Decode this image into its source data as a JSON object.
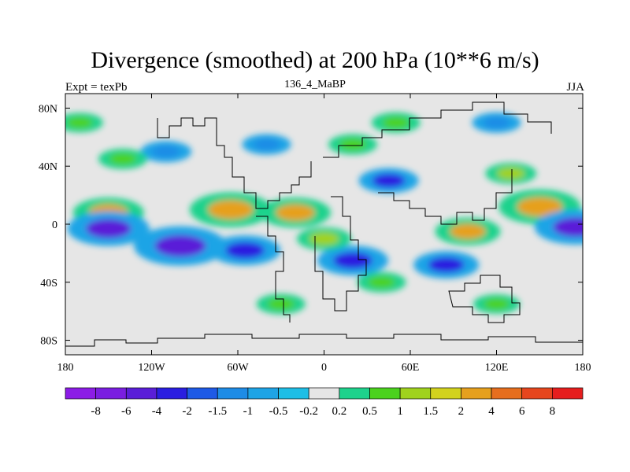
{
  "chart_data": {
    "type": "heatmap",
    "title": "Divergence (smoothed) at 200 hPa (10**6 m/s)",
    "subtitle_left": "Expt = texPb",
    "subtitle_center": "136_4_MaBP",
    "subtitle_right": "JJA",
    "xlim": [
      -180,
      180
    ],
    "ylim": [
      -90,
      90
    ],
    "x_ticks": [
      {
        "value": -180,
        "label": "180"
      },
      {
        "value": -120,
        "label": "120W"
      },
      {
        "value": -60,
        "label": "60W"
      },
      {
        "value": 0,
        "label": "0"
      },
      {
        "value": 60,
        "label": "60E"
      },
      {
        "value": 120,
        "label": "120E"
      },
      {
        "value": 180,
        "label": "180"
      }
    ],
    "y_ticks": [
      {
        "value": 80,
        "label": "80N"
      },
      {
        "value": 40,
        "label": "40N"
      },
      {
        "value": 0,
        "label": "0"
      },
      {
        "value": -40,
        "label": "40S"
      },
      {
        "value": -80,
        "label": "80S"
      }
    ],
    "colorbar": {
      "levels": [
        "-8",
        "-6",
        "-4",
        "-2",
        "-1.5",
        "-1",
        "-0.5",
        "-0.2",
        "0.2",
        "0.5",
        "1",
        "1.5",
        "2",
        "4",
        "6",
        "8"
      ],
      "colors": [
        "#8c1ce6",
        "#7a1ee0",
        "#5a1ed8",
        "#2a1ee0",
        "#1e5ae6",
        "#1e8ce6",
        "#1ea4e6",
        "#1ebee6",
        "#e6e6e6",
        "#1ed28c",
        "#4bd21e",
        "#a0d21e",
        "#d2d21e",
        "#e6a01e",
        "#e66e1e",
        "#e6461e",
        "#e61e1e"
      ]
    },
    "anomalies": [
      {
        "lon": -150,
        "lat": 8,
        "value": 3
      },
      {
        "lon": -65,
        "lat": 10,
        "value": 4
      },
      {
        "lon": -20,
        "lat": 8,
        "value": 3
      },
      {
        "lon": 150,
        "lat": 12,
        "value": 4
      },
      {
        "lon": 100,
        "lat": -5,
        "value": 2.5
      },
      {
        "lon": -150,
        "lat": -3,
        "value": -4
      },
      {
        "lon": -100,
        "lat": -15,
        "value": -5
      },
      {
        "lon": -55,
        "lat": -18,
        "value": -3
      },
      {
        "lon": 20,
        "lat": -25,
        "value": -3
      },
      {
        "lon": 85,
        "lat": -28,
        "value": -2.5
      },
      {
        "lon": 175,
        "lat": -2,
        "value": -4
      },
      {
        "lon": 45,
        "lat": 30,
        "value": -2
      },
      {
        "lon": -110,
        "lat": 50,
        "value": -1.2
      },
      {
        "lon": -40,
        "lat": 55,
        "value": -1
      },
      {
        "lon": 20,
        "lat": 55,
        "value": 1
      },
      {
        "lon": -140,
        "lat": 45,
        "value": 1
      },
      {
        "lon": 50,
        "lat": 70,
        "value": 1
      },
      {
        "lon": 40,
        "lat": -40,
        "value": 1
      },
      {
        "lon": -30,
        "lat": -55,
        "value": 1
      },
      {
        "lon": 120,
        "lat": 70,
        "value": -1
      },
      {
        "lon": 120,
        "lat": -55,
        "value": 0.8
      },
      {
        "lon": 0,
        "lat": -10,
        "value": 1.5
      },
      {
        "lon": 130,
        "lat": 35,
        "value": 1.2
      },
      {
        "lon": -170,
        "lat": 70,
        "value": 0.8
      }
    ]
  }
}
